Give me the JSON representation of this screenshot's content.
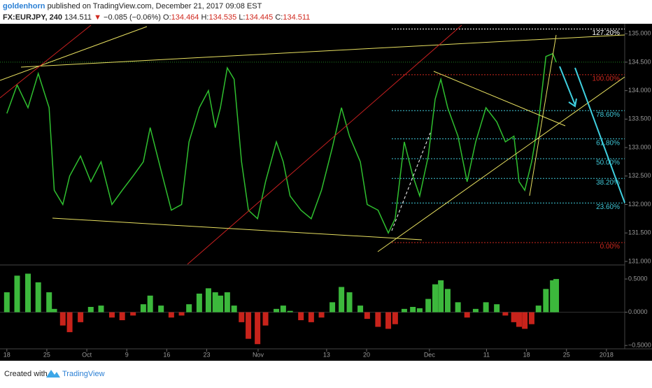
{
  "header": {
    "author": "goldenhorn",
    "published": "published on TradingView.com, December 21, 2017 09:08 EST",
    "symbol": "FX:EURJPY, 240",
    "price": "134.511",
    "arrow": "▼",
    "change": "−0.085 (−0.06%)",
    "open_label": "O:",
    "open": "134.464",
    "high_label": "H:",
    "high": "134.535",
    "low_label": "L:",
    "low": "134.445",
    "close_label": "C:",
    "close": "134.511"
  },
  "chart_data": [
    {
      "type": "line",
      "color": "#2fbf2f",
      "x": [
        0,
        1.8,
        3.7,
        5.5,
        7.4,
        8.3,
        9.8,
        11.0,
        12.9,
        14.7,
        16.5,
        18.4,
        20.2,
        22.1,
        23.9,
        25.1,
        27.0,
        28.8,
        30.6,
        31.9,
        33.7,
        35.3,
        36.5,
        37.4,
        38.6,
        39.8,
        41.1,
        42.3,
        43.9,
        45.3,
        47.2,
        48.4,
        49.6,
        51.5,
        53.3,
        55.1,
        57.0,
        58.6,
        60.0,
        61.9,
        63.1,
        65.0,
        66.8,
        68.0,
        69.6,
        71.1,
        72.3,
        73.8,
        75.0,
        76.0,
        77.2,
        79.0,
        80.6,
        82.1,
        83.9,
        85.8,
        87.3,
        88.8,
        89.7,
        90.7,
        91.9,
        93.1,
        94.4,
        95.6,
        96.2
      ],
      "values": [
        133.6,
        134.1,
        133.7,
        134.3,
        133.7,
        132.25,
        132.0,
        132.5,
        132.85,
        132.4,
        132.75,
        132.0,
        132.25,
        132.5,
        132.75,
        133.35,
        132.6,
        131.9,
        132.0,
        133.1,
        133.7,
        134.0,
        133.35,
        133.7,
        134.4,
        134.2,
        132.75,
        131.9,
        131.75,
        132.4,
        133.1,
        132.75,
        132.15,
        131.9,
        131.75,
        132.25,
        133.0,
        133.7,
        133.2,
        132.75,
        132.0,
        131.9,
        131.5,
        131.75,
        133.1,
        132.5,
        132.15,
        132.85,
        133.85,
        134.2,
        133.7,
        133.2,
        132.4,
        133.1,
        133.7,
        133.45,
        133.1,
        133.2,
        132.4,
        132.25,
        132.75,
        133.45,
        134.6,
        134.65,
        134.5
      ],
      "xlim": [
        -1.2,
        108.2
      ],
      "ylim": [
        130.95,
        135.15
      ],
      "yticks": [
        {
          "value": 131,
          "label": "131.000"
        },
        {
          "value": 131.5,
          "label": "131.500"
        },
        {
          "value": 132,
          "label": "132.000"
        },
        {
          "value": 132.5,
          "label": "132.500"
        },
        {
          "value": 133,
          "label": "133.000"
        },
        {
          "value": 133.5,
          "label": "133.500"
        },
        {
          "value": 134,
          "label": "134.000"
        },
        {
          "value": 134.5,
          "label": "134.500"
        },
        {
          "value": 135,
          "label": "135.000"
        }
      ],
      "fibonacci": [
        {
          "label": "127.20%",
          "price": 135.082,
          "color": "#ffffff"
        },
        {
          "label": "100.00%",
          "price": 134.28,
          "color": "#d0281e"
        },
        {
          "label": "78.60%",
          "price": 133.649,
          "color": "#3fc8d8"
        },
        {
          "label": "61.80%",
          "price": 133.153,
          "color": "#3fc8d8"
        },
        {
          "label": "50.00%",
          "price": 132.805,
          "color": "#3fc8d8"
        },
        {
          "label": "38.20%",
          "price": 132.457,
          "color": "#3fc8d8"
        },
        {
          "label": "23.60%",
          "price": 132.026,
          "color": "#3fc8d8"
        },
        {
          "label": "0.00%",
          "price": 131.33,
          "color": "#d0281e"
        }
      ]
    },
    {
      "type": "bar",
      "color": "#3cb83c",
      "negative_color": "#c8231b",
      "x": [
        0,
        1.8,
        3.7,
        5.5,
        7.4,
        8.3,
        9.8,
        11.0,
        12.9,
        14.7,
        16.5,
        18.4,
        20.2,
        22.1,
        23.9,
        25.1,
        27.0,
        28.8,
        30.6,
        31.9,
        33.7,
        35.3,
        36.5,
        37.4,
        38.6,
        39.8,
        41.1,
        42.3,
        43.9,
        45.3,
        47.2,
        48.4,
        49.6,
        51.5,
        53.3,
        55.1,
        57.0,
        58.6,
        60.0,
        61.9,
        63.1,
        65.0,
        66.8,
        68.0,
        69.6,
        71.1,
        72.3,
        73.8,
        75.0,
        76.0,
        77.2,
        79.0,
        80.6,
        82.1,
        83.9,
        85.8,
        87.3,
        88.8,
        89.7,
        90.7,
        91.9,
        93.1,
        94.4,
        95.6,
        96.2
      ],
      "values": [
        0.3,
        0.55,
        0.58,
        0.45,
        0.3,
        0.05,
        -0.2,
        -0.3,
        -0.15,
        0.08,
        0.1,
        -0.08,
        -0.12,
        -0.05,
        0.12,
        0.25,
        0.1,
        -0.08,
        -0.05,
        0.12,
        0.28,
        0.36,
        0.3,
        0.25,
        0.3,
        0.1,
        -0.15,
        -0.4,
        -0.48,
        -0.2,
        0.05,
        0.1,
        0.02,
        -0.12,
        -0.15,
        -0.08,
        0.15,
        0.38,
        0.3,
        0.1,
        -0.1,
        -0.22,
        -0.25,
        -0.18,
        0.05,
        0.08,
        0.06,
        0.2,
        0.42,
        0.48,
        0.35,
        0.15,
        -0.08,
        0.05,
        0.15,
        0.12,
        -0.05,
        -0.15,
        -0.22,
        -0.25,
        -0.18,
        0.1,
        0.35,
        0.48,
        0.5
      ],
      "xlim": [
        -1.2,
        108.2
      ],
      "ylim": [
        -0.53,
        0.69
      ],
      "yticks": [
        {
          "value": 0.5,
          "label": "0.5000"
        },
        {
          "value": 0,
          "label": "0.0000"
        },
        {
          "value": -0.5,
          "label": "−0.5000"
        }
      ],
      "xticks": [
        {
          "value": 0,
          "label": "18"
        },
        {
          "value": 7,
          "label": "25"
        },
        {
          "value": 14,
          "label": "Oct"
        },
        {
          "value": 21,
          "label": "9"
        },
        {
          "value": 28,
          "label": "16"
        },
        {
          "value": 35,
          "label": "23"
        },
        {
          "value": 44,
          "label": "Nov"
        },
        {
          "value": 56,
          "label": "13"
        },
        {
          "value": 63,
          "label": "20"
        },
        {
          "value": 74,
          "label": "Dec"
        },
        {
          "value": 84,
          "label": "11"
        },
        {
          "value": 91,
          "label": "18"
        },
        {
          "value": 98,
          "label": "25"
        },
        {
          "value": 105,
          "label": "2018"
        }
      ]
    }
  ],
  "footer": {
    "created": "Created with",
    "brand": "TradingView"
  }
}
